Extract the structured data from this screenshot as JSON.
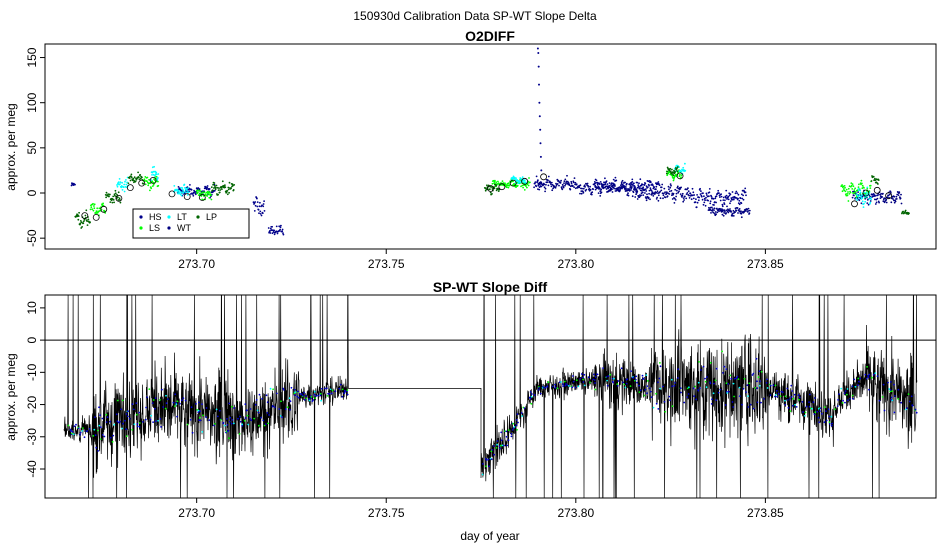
{
  "figure": {
    "title": "150930d   Calibration Data SP-WT Slope Delta",
    "xlabel": "day of year"
  },
  "colors": {
    "HS": "#00008b",
    "LS": "#00ff00",
    "LT": "#00ffff",
    "WT": "#000080",
    "LP": "#006400",
    "diff_line": "#000000",
    "diff_blue": "#0000cd",
    "axis": "#000000"
  },
  "chart_data": [
    {
      "type": "scatter",
      "title": "O2DIFF",
      "xlabel": "",
      "ylabel": "approx. per meg",
      "xlim": [
        273.66,
        273.895
      ],
      "ylim": [
        -62,
        165
      ],
      "xticks": [
        273.7,
        273.75,
        273.8,
        273.85
      ],
      "xtick_labels": [
        "273.70",
        "273.75",
        "273.80",
        "273.85"
      ],
      "yticks": [
        -50,
        0,
        50,
        100,
        150
      ],
      "ytick_labels": [
        "-50",
        "0",
        "50",
        "100",
        "150"
      ],
      "grid": false,
      "legend": {
        "placement": "lower-left",
        "entries": [
          "HS",
          "LT",
          "LP",
          "LS",
          "WT"
        ]
      },
      "series": [
        {
          "name": "HS",
          "symbol": "dot",
          "segments": [
            [
              273.667,
              273.668,
              8,
              3
            ],
            [
              273.695,
              273.705,
              2,
              5
            ],
            [
              273.715,
              273.718,
              -15,
              8
            ],
            [
              273.719,
              273.723,
              -42,
              5
            ],
            [
              273.789,
              273.791,
              10,
              6
            ],
            [
              273.805,
              273.822,
              8,
              6
            ],
            [
              273.83,
              273.845,
              -5,
              8
            ],
            [
              273.873,
              273.88,
              -4,
              6
            ]
          ]
        },
        {
          "name": "LS",
          "symbol": "dot",
          "segments": [
            [
              273.672,
              273.676,
              -18,
              6
            ],
            [
              273.686,
              273.69,
              12,
              6
            ],
            [
              273.7,
              273.704,
              -2,
              5
            ],
            [
              273.778,
              273.788,
              10,
              4
            ],
            [
              273.824,
              273.828,
              20,
              5
            ],
            [
              273.87,
              273.878,
              2,
              8
            ]
          ]
        },
        {
          "name": "LT",
          "symbol": "dot",
          "segments": [
            [
              273.679,
              273.682,
              8,
              6
            ],
            [
              273.688,
              273.69,
              20,
              8
            ],
            [
              273.694,
              273.698,
              2,
              5
            ],
            [
              273.783,
              273.787,
              14,
              4
            ],
            [
              273.826,
              273.829,
              26,
              5
            ],
            [
              273.874,
              273.878,
              -5,
              8
            ]
          ]
        },
        {
          "name": "WT",
          "symbol": "dot",
          "segments": [
            [
              273.79,
              273.8,
              10,
              6
            ],
            [
              273.8,
              273.815,
              5,
              5
            ],
            [
              273.815,
              273.83,
              0,
              7
            ],
            [
              273.835,
              273.846,
              -20,
              4
            ],
            [
              273.88,
              273.886,
              -5,
              6
            ]
          ]
        },
        {
          "name": "LP",
          "symbol": "dot",
          "segments": [
            [
              273.668,
              273.672,
              -30,
              8
            ],
            [
              273.676,
              273.68,
              -5,
              5
            ],
            [
              273.682,
              273.686,
              15,
              6
            ],
            [
              273.704,
              273.71,
              5,
              6
            ],
            [
              273.776,
              273.78,
              5,
              4
            ],
            [
              273.824,
              273.827,
              24,
              4
            ],
            [
              273.878,
              273.88,
              15,
              4
            ],
            [
              273.886,
              273.888,
              -22,
              2
            ]
          ]
        },
        {
          "name": "spike",
          "symbol": "dot",
          "points": [
            [
              273.79,
              160
            ],
            [
              273.7901,
              155
            ],
            [
              273.7902,
              140
            ],
            [
              273.7903,
              120
            ],
            [
              273.7904,
              100
            ],
            [
              273.7905,
              85
            ],
            [
              273.7906,
              70
            ],
            [
              273.7907,
              55
            ],
            [
              273.7908,
              40
            ],
            [
              273.7909,
              25
            ]
          ]
        },
        {
          "name": "means",
          "symbol": "open-circle",
          "points": [
            [
              273.6705,
              -25
            ],
            [
              273.6735,
              -27
            ],
            [
              273.6755,
              -18
            ],
            [
              273.6795,
              -6
            ],
            [
              273.6825,
              6
            ],
            [
              273.6855,
              11
            ],
            [
              273.6885,
              14
            ],
            [
              273.6935,
              -1
            ],
            [
              273.6975,
              -4
            ],
            [
              273.7015,
              -5
            ],
            [
              273.7775,
              5
            ],
            [
              273.7805,
              7
            ],
            [
              273.7835,
              11
            ],
            [
              273.7865,
              13
            ],
            [
              273.7915,
              18
            ],
            [
              273.8275,
              19
            ],
            [
              273.8735,
              -12
            ],
            [
              273.8765,
              0
            ],
            [
              273.8795,
              3
            ],
            [
              273.8825,
              -3
            ]
          ]
        }
      ]
    },
    {
      "type": "line",
      "title": "SP-WT Slope Diff",
      "xlabel": "day of year",
      "ylabel": "approx. per meg",
      "xlim": [
        273.66,
        273.895
      ],
      "ylim": [
        -49,
        14
      ],
      "xticks": [
        273.7,
        273.75,
        273.8,
        273.85
      ],
      "xtick_labels": [
        "273.70",
        "273.75",
        "273.80",
        "273.85"
      ],
      "yticks": [
        -40,
        -30,
        -20,
        -10,
        0,
        10
      ],
      "ytick_labels": [
        "-40",
        "-30",
        "-20",
        "-10",
        "0",
        "10"
      ],
      "hline": 0,
      "grid": false,
      "series": [
        {
          "name": "",
          "segments": [
            [
              273.665,
              273.672,
              -28,
              -28,
              3
            ],
            [
              273.672,
              273.69,
              -28,
              -20,
              10
            ],
            [
              273.69,
              273.712,
              -20,
              -25,
              10
            ],
            [
              273.712,
              273.727,
              -25,
              -18,
              9
            ],
            [
              273.727,
              273.74,
              -18,
              -15,
              3
            ],
            [
              273.74,
              273.775,
              -15,
              -15,
              0
            ],
            [
              273.775,
              273.783,
              -40,
              -28,
              5
            ],
            [
              273.783,
              273.79,
              -28,
              -15,
              4
            ],
            [
              273.79,
              273.805,
              -15,
              -12,
              3
            ],
            [
              273.805,
              273.82,
              -12,
              -14,
              6
            ],
            [
              273.82,
              273.85,
              -14,
              -15,
              12
            ],
            [
              273.85,
              273.868,
              -14,
              -24,
              6
            ],
            [
              273.868,
              273.876,
              -20,
              -12,
              5
            ],
            [
              273.876,
              273.89,
              -12,
              -20,
              10
            ]
          ]
        }
      ]
    }
  ]
}
